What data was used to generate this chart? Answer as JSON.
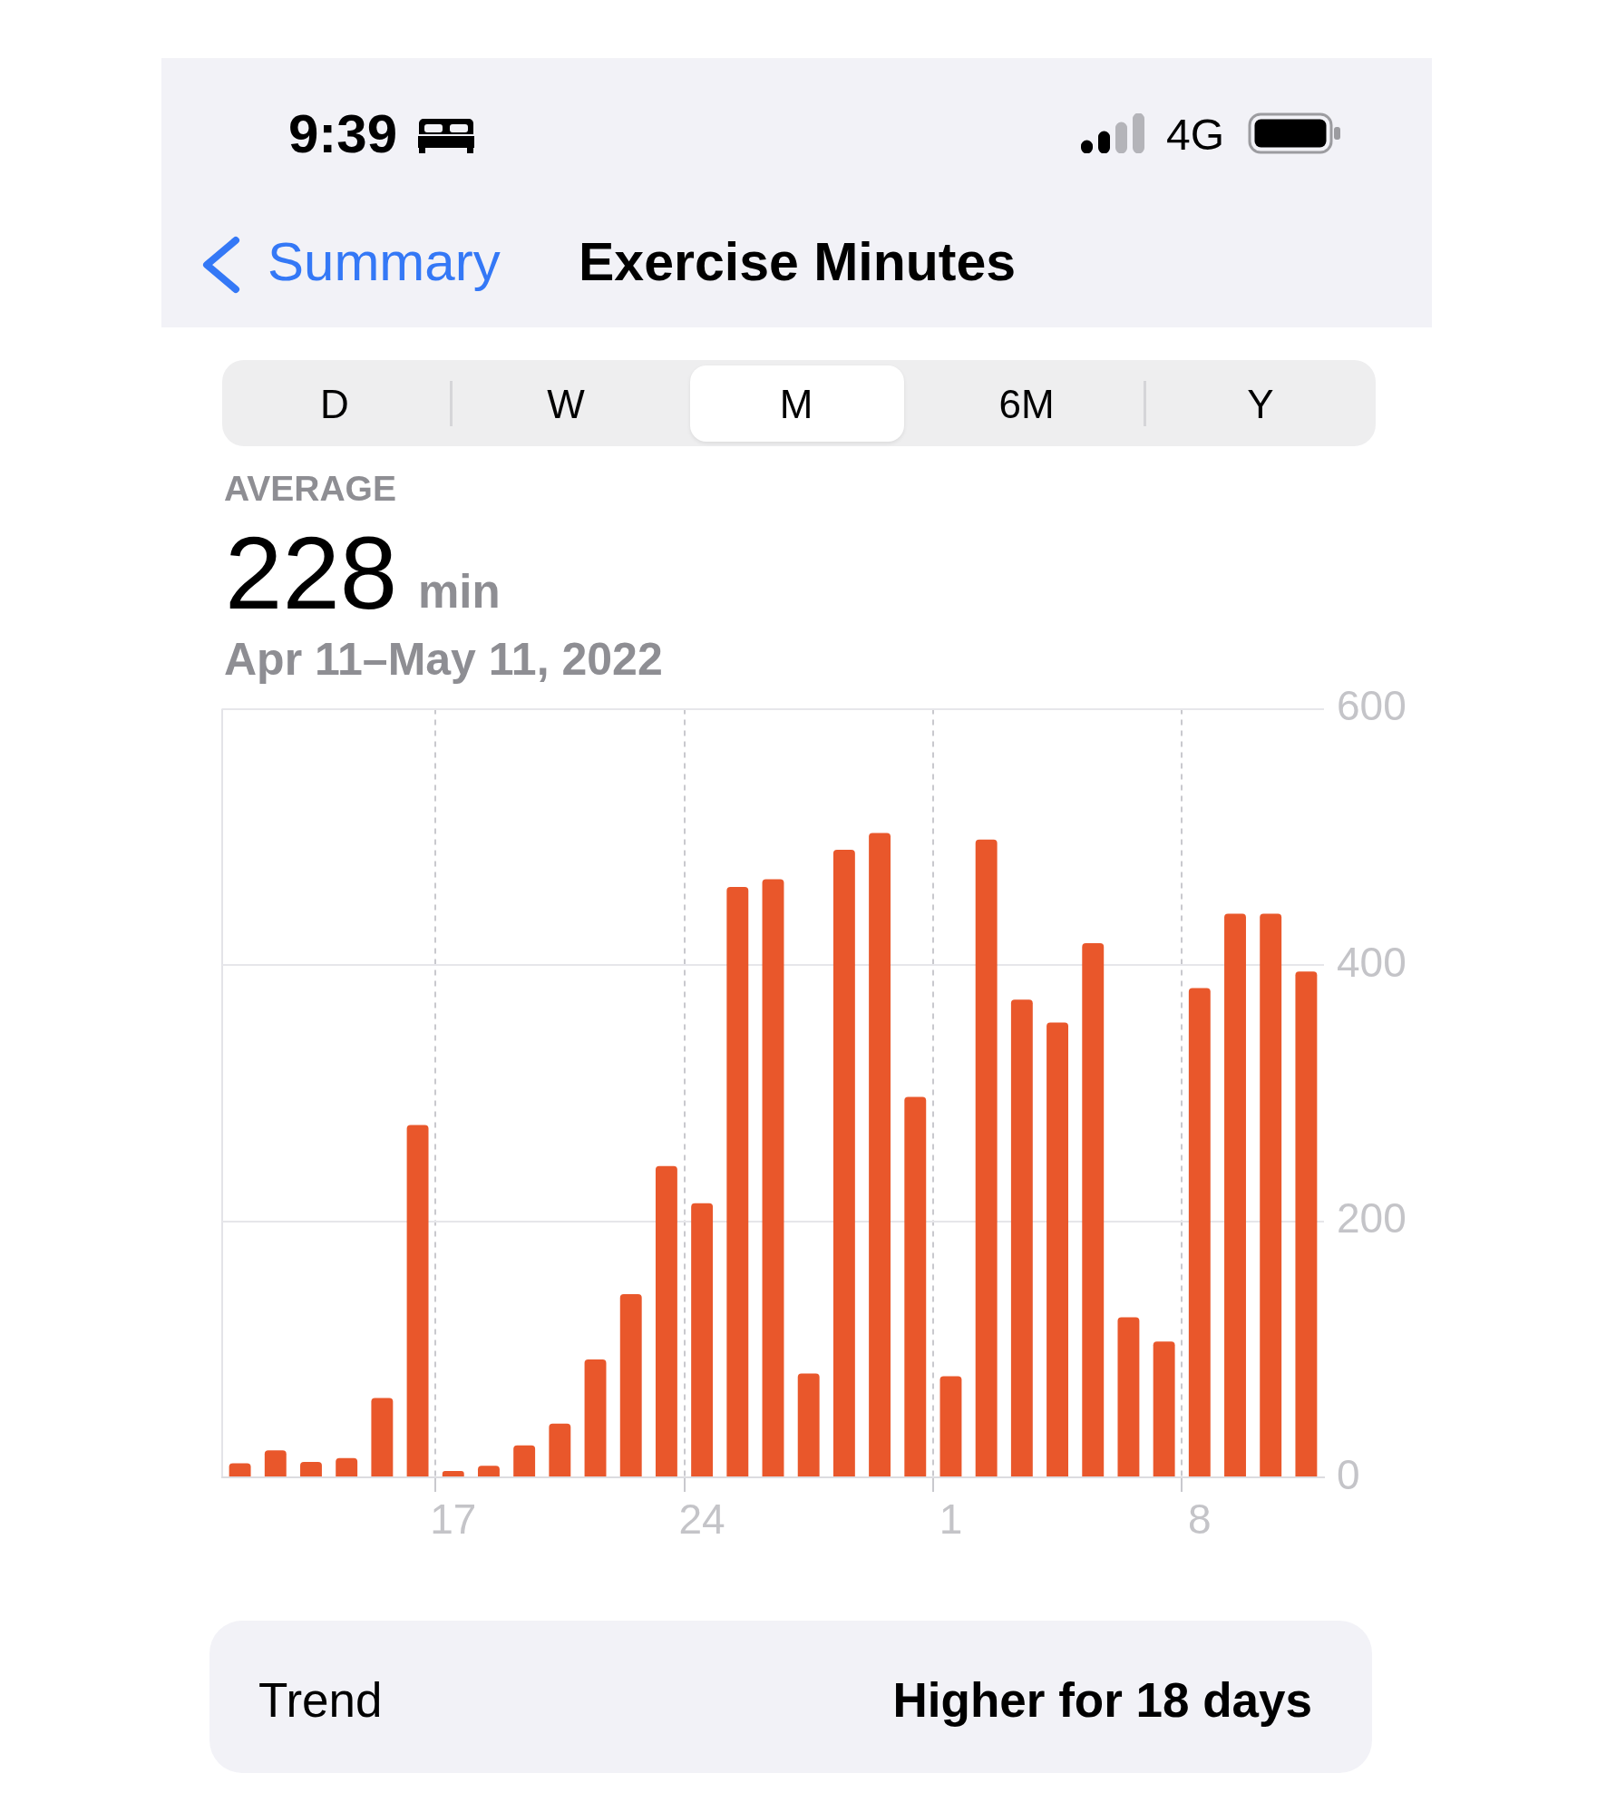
{
  "chart_data": {
    "type": "bar",
    "title": "Exercise Minutes",
    "subtitle": "Apr 11–May 11, 2022",
    "annotations": [
      "9:39",
      "4G",
      "Summary",
      "D",
      "W",
      "M",
      "6M",
      "Y",
      "AVERAGE",
      "228",
      "min",
      "Trend",
      "Higher for 18 days"
    ],
    "categories": [
      null,
      null,
      null,
      null,
      null,
      null,
      "17",
      null,
      null,
      null,
      null,
      null,
      null,
      "24",
      null,
      null,
      null,
      null,
      null,
      null,
      "1",
      null,
      null,
      null,
      null,
      null,
      null,
      "8",
      null,
      null,
      null
    ],
    "values": [
      11,
      21,
      12,
      15,
      62,
      275,
      5,
      9,
      25,
      42,
      92,
      143,
      243,
      214,
      461,
      467,
      81,
      490,
      503,
      297,
      79,
      498,
      373,
      355,
      417,
      125,
      106,
      382,
      440,
      440,
      395
    ],
    "color": "#e9572b",
    "ylim": [
      0,
      600
    ],
    "yticks": [
      0,
      200,
      400,
      600
    ],
    "grid": true
  }
}
